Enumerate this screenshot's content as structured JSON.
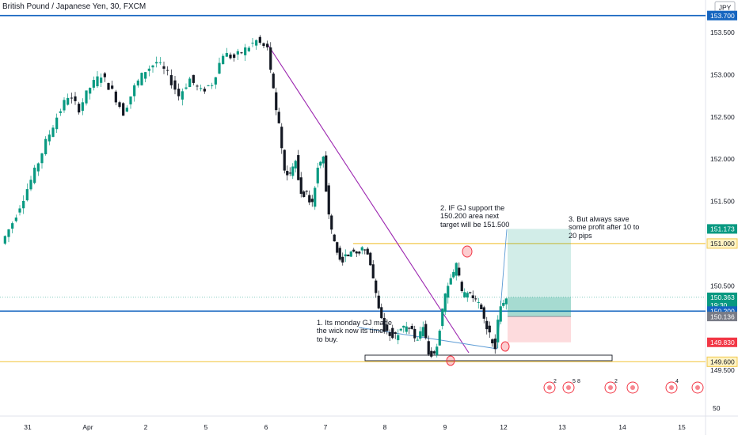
{
  "header": {
    "title": "British Pound / Japanese Yen, 30, FXCM",
    "currency": "JPY"
  },
  "chart_data": {
    "type": "candlestick",
    "symbol": "GBPJPY",
    "timeframe": "30",
    "y_ticks": [
      "153.500",
      "153.000",
      "152.500",
      "152.000",
      "151.500",
      "151.000",
      "150.500",
      "149.500"
    ],
    "x_ticks": [
      "31",
      "Apr",
      "2",
      "5",
      "6",
      "7",
      "8",
      "9",
      "12",
      "13",
      "14",
      "15"
    ],
    "volume_tick": "50",
    "price_path": [
      [
        0,
        151.0
      ],
      [
        2,
        151.25
      ],
      [
        4,
        151.55
      ],
      [
        6,
        151.85
      ],
      [
        8,
        152.2
      ],
      [
        10,
        152.5
      ],
      [
        12,
        152.75
      ],
      [
        14,
        152.6
      ],
      [
        16,
        152.85
      ],
      [
        18,
        153.0
      ],
      [
        20,
        152.8
      ],
      [
        22,
        152.55
      ],
      [
        24,
        152.85
      ],
      [
        26,
        153.05
      ],
      [
        28,
        153.15
      ],
      [
        30,
        153.0
      ],
      [
        32,
        152.75
      ],
      [
        34,
        152.95
      ],
      [
        36,
        152.8
      ],
      [
        38,
        152.9
      ],
      [
        40,
        153.25
      ],
      [
        42,
        153.2
      ],
      [
        44,
        153.3
      ],
      [
        46,
        153.4
      ],
      [
        48,
        153.3
      ]
    ],
    "price_path_2": [
      [
        48,
        153.3
      ],
      [
        49,
        152.8
      ],
      [
        50,
        152.4
      ],
      [
        51,
        151.9
      ],
      [
        52,
        151.8
      ],
      [
        53,
        152.0
      ],
      [
        54,
        151.6
      ],
      [
        55,
        151.6
      ],
      [
        56,
        151.45
      ],
      [
        57,
        151.9
      ],
      [
        58,
        152.0
      ],
      [
        59,
        151.3
      ],
      [
        60,
        151.0
      ],
      [
        61,
        150.8
      ],
      [
        62,
        150.85
      ],
      [
        63,
        150.9
      ],
      [
        64,
        150.9
      ],
      [
        65,
        150.95
      ],
      [
        66,
        150.9
      ],
      [
        67,
        150.6
      ],
      [
        68,
        150.2
      ],
      [
        69,
        150.0
      ],
      [
        70,
        149.95
      ],
      [
        71,
        149.9
      ],
      [
        72,
        150.0
      ],
      [
        73,
        150.0
      ],
      [
        74,
        149.95
      ],
      [
        75,
        149.85
      ],
      [
        76,
        150.0
      ],
      [
        77,
        149.7
      ],
      [
        78,
        149.65
      ],
      [
        79,
        150.0
      ],
      [
        80,
        150.4
      ],
      [
        81,
        150.55
      ],
      [
        82,
        150.75
      ],
      [
        83,
        150.4
      ],
      [
        84,
        150.4
      ],
      [
        85,
        150.35
      ],
      [
        86,
        150.3
      ],
      [
        87,
        150.1
      ],
      [
        88,
        149.9
      ],
      [
        89,
        149.8
      ],
      [
        90,
        150.3
      ],
      [
        91,
        150.36
      ]
    ],
    "levels": [
      {
        "name": "resistance-top",
        "price": 153.7,
        "label": "153.700",
        "color": "#1565c0"
      },
      {
        "name": "target",
        "price": 151.173,
        "label": "151.173",
        "color": "#089981"
      },
      {
        "name": "level-151",
        "price": 151.0,
        "label": "151.000",
        "color": "#f2c94c"
      },
      {
        "name": "current-price",
        "price": 150.363,
        "label": "150.363",
        "color": "#089981"
      },
      {
        "name": "countdown",
        "price": 150.27,
        "label": "19:30",
        "color": "#089981"
      },
      {
        "name": "support",
        "price": 150.2,
        "label": "150.200",
        "color": "#1565c0"
      },
      {
        "name": "entry",
        "price": 150.136,
        "label": "150.136",
        "color": "#787b86"
      },
      {
        "name": "stop",
        "price": 149.83,
        "label": "149.830",
        "color": "#f23645"
      },
      {
        "name": "level-149-6",
        "price": 149.6,
        "label": "149.600",
        "color": "#f2c94c"
      }
    ],
    "position": {
      "entry": 150.136,
      "target": 151.173,
      "stop": 149.83
    },
    "annotations": [
      "1. Its monday GJ made\nthe wick now its time\nto buy.",
      "2. IF GJ support the\n150.200 area next\ntarget will be 151.500",
      "3. But always save\nsome profit after 10 to\n20 pips"
    ],
    "event_badges": [
      "2",
      "5",
      "8",
      "2",
      "4"
    ]
  }
}
